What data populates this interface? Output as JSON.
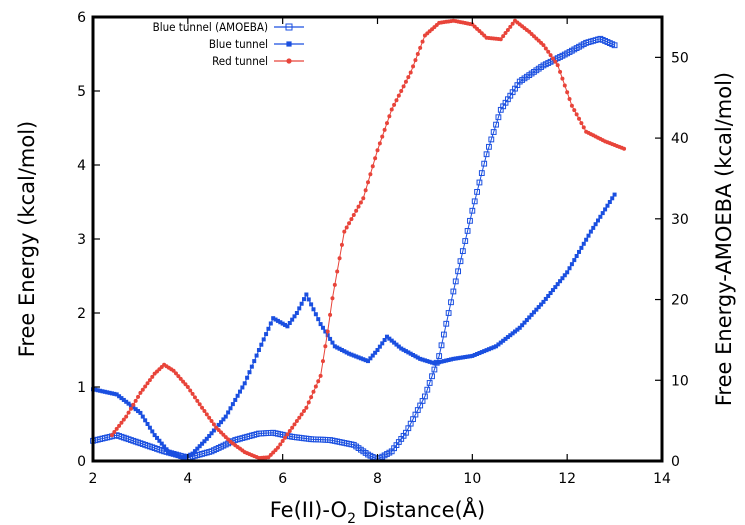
{
  "chart_data": {
    "type": "line",
    "title": "",
    "xlabel": {
      "main": "Fe(II)-O",
      "sub": "2",
      "rest": " Distance(Å)"
    },
    "ylabel": "Free Energy (kcal/mol)",
    "y2label": "Free Energy-AMOEBA (kcal/mol)",
    "xlim": [
      2,
      14
    ],
    "ylim": [
      0,
      6
    ],
    "y2lim": [
      0,
      55
    ],
    "xticks": [
      "2",
      "4",
      "6",
      "8",
      "10",
      "12",
      "14"
    ],
    "yticks": [
      "0",
      "1",
      "2",
      "3",
      "4",
      "5",
      "6"
    ],
    "y2ticks": [
      "0",
      "10",
      "20",
      "30",
      "40",
      "50"
    ],
    "legend_position": "top-left",
    "series": [
      {
        "name": "Blue tunnel (AMOEBA)",
        "axis": "y2",
        "color": "#1a4fe0",
        "marker": "open-square",
        "x": [
          2.0,
          2.5,
          3.0,
          3.5,
          4.0,
          4.5,
          5.0,
          5.5,
          5.8,
          6.2,
          6.6,
          7.0,
          7.5,
          7.8,
          8.0,
          8.3,
          8.6,
          9.0,
          9.3,
          9.6,
          10.0,
          10.3,
          10.6,
          11.0,
          11.5,
          12.0,
          12.4,
          12.7,
          13.0
        ],
        "y": [
          2.5,
          3.2,
          2.2,
          1.2,
          0.4,
          1.2,
          2.6,
          3.4,
          3.5,
          3.0,
          2.7,
          2.6,
          2.0,
          0.8,
          0.2,
          1.2,
          3.5,
          8.0,
          13.0,
          21.0,
          31.0,
          38.0,
          43.5,
          47.0,
          49.0,
          50.5,
          51.8,
          52.3,
          51.5
        ]
      },
      {
        "name": "Blue tunnel",
        "axis": "y",
        "color": "#1a4fe0",
        "marker": "filled-square",
        "x": [
          2.0,
          2.5,
          3.0,
          3.3,
          3.6,
          3.9,
          4.1,
          4.4,
          4.8,
          5.2,
          5.5,
          5.8,
          6.1,
          6.3,
          6.5,
          6.8,
          7.1,
          7.4,
          7.8,
          8.0,
          8.2,
          8.5,
          8.9,
          9.2,
          9.6,
          10.0,
          10.5,
          11.0,
          11.5,
          12.0,
          12.5,
          13.0
        ],
        "y": [
          0.97,
          0.9,
          0.65,
          0.35,
          0.12,
          0.04,
          0.1,
          0.3,
          0.6,
          1.05,
          1.5,
          1.93,
          1.82,
          2.0,
          2.25,
          1.85,
          1.55,
          1.45,
          1.35,
          1.5,
          1.68,
          1.52,
          1.38,
          1.32,
          1.38,
          1.42,
          1.55,
          1.8,
          2.15,
          2.55,
          3.1,
          3.6
        ]
      },
      {
        "name": "Red tunnel",
        "axis": "y",
        "color": "#e8443a",
        "marker": "filled-circle",
        "x": [
          2.4,
          2.7,
          3.0,
          3.3,
          3.5,
          3.7,
          4.0,
          4.3,
          4.6,
          4.9,
          5.2,
          5.5,
          5.7,
          5.9,
          6.2,
          6.5,
          6.8,
          6.95,
          7.05,
          7.3,
          7.7,
          8.0,
          8.3,
          8.7,
          9.0,
          9.3,
          9.6,
          10.0,
          10.3,
          10.6,
          10.9,
          11.2,
          11.5,
          11.8,
          12.1,
          12.4,
          12.8,
          13.2
        ],
        "y": [
          0.35,
          0.6,
          0.92,
          1.18,
          1.3,
          1.22,
          1.0,
          0.72,
          0.45,
          0.26,
          0.12,
          0.04,
          0.05,
          0.18,
          0.45,
          0.72,
          1.15,
          1.75,
          2.2,
          3.1,
          3.55,
          4.2,
          4.75,
          5.25,
          5.75,
          5.92,
          5.95,
          5.9,
          5.72,
          5.7,
          5.95,
          5.8,
          5.62,
          5.35,
          4.8,
          4.45,
          4.32,
          4.22
        ]
      }
    ]
  }
}
